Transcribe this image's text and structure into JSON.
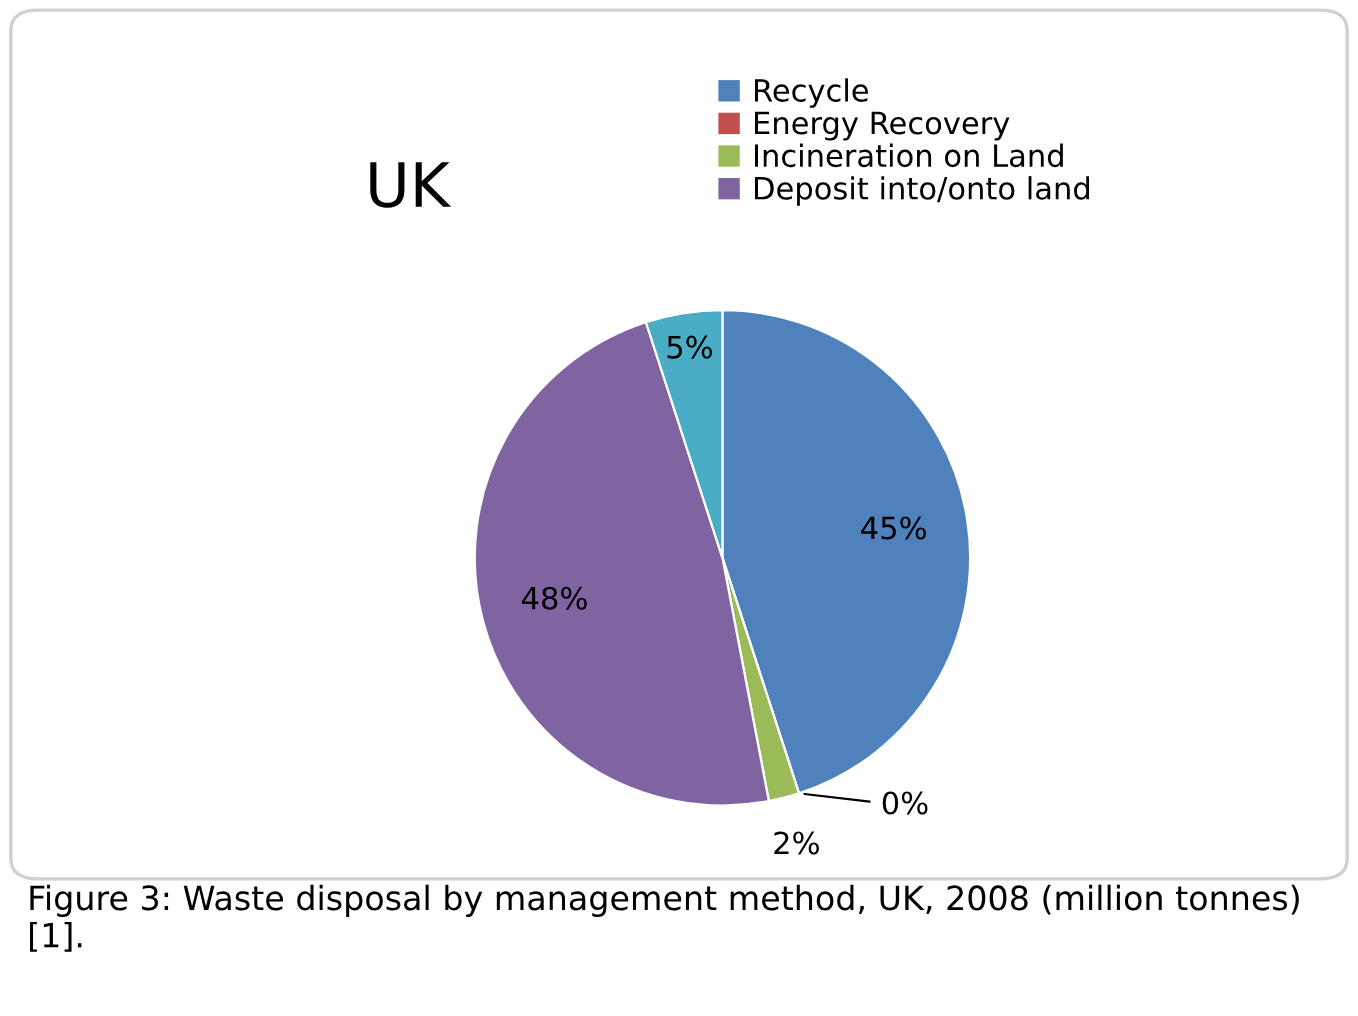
{
  "chart_data": {
    "type": "pie",
    "title": "UK",
    "categories": [
      "Recycle",
      "Energy Recovery",
      "Incineration on Land",
      "Deposit into/onto land",
      null
    ],
    "values": [
      45,
      0,
      2,
      48,
      5
    ],
    "colors": [
      "#4f81bd",
      "#c0504d",
      "#9bbb59",
      "#8064a2",
      "#4bacc6"
    ],
    "value_labels": [
      "45%",
      "0%",
      "2%",
      "48%",
      "5%"
    ],
    "legend": "top right",
    "annotations": [
      "Figure 3: Waste disposal by management method, UK, 2008 (million tonnes) [1]."
    ]
  }
}
